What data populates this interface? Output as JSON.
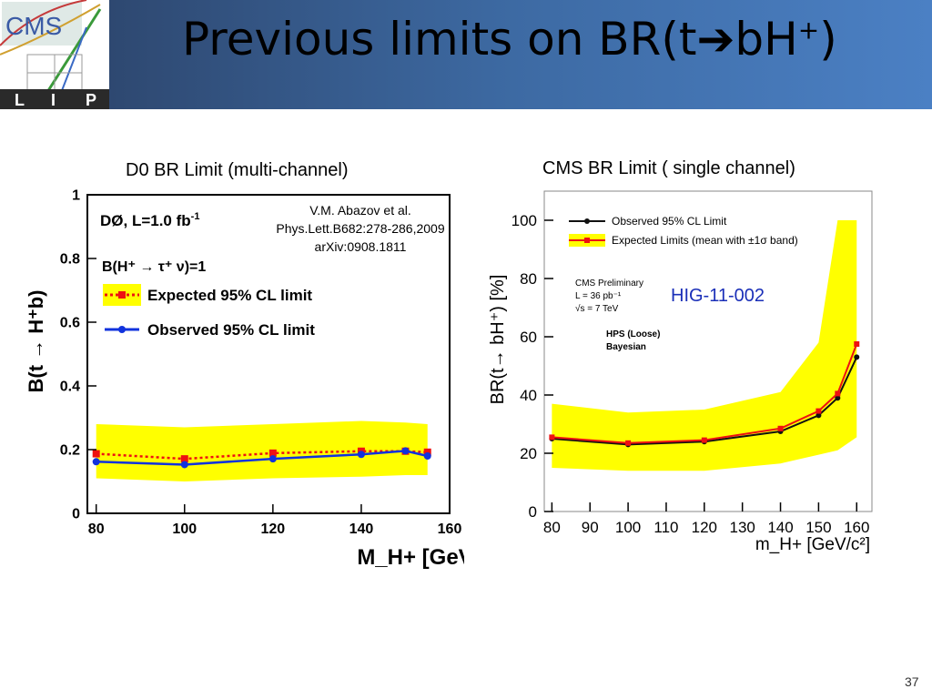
{
  "slide": {
    "title": "Previous limits on BR(t",
    "title_arrow": "➔",
    "title_tail": "bH",
    "title_sup": "+",
    "title_close": ")",
    "page_number": "37"
  },
  "logo": {
    "cms_text": "CMS",
    "lip_letters": [
      "L",
      "I",
      "P"
    ]
  },
  "left_panel": {
    "caption": "D0 BR Limit (multi-channel)",
    "experiment": "DØ, L=1.0 fb",
    "experiment_sup": "-1",
    "process": "B(H⁺ → τ⁺ ν)=1",
    "reference": [
      "V.M. Abazov et al.",
      "Phys.Lett.B682:278-286,2009",
      "arXiv:0908.1811"
    ]
  },
  "right_panel": {
    "caption": "CMS BR Limit ( single channel)",
    "note": "HIG-11-002",
    "info": [
      "CMS Preliminary",
      "L = 36 pb⁻¹",
      "√s = 7 TeV"
    ],
    "method": [
      "HPS (Loose)",
      "Bayesian"
    ]
  },
  "chart_data": [
    {
      "type": "line",
      "title": "D0 BR Limit (multi-channel)",
      "xlabel": "M_H+ [GeV]",
      "ylabel": "B(t → H⁺b)",
      "xlim": [
        78,
        160
      ],
      "ylim": [
        0,
        1
      ],
      "xticks": [
        80,
        100,
        120,
        140,
        160
      ],
      "yticks": [
        0,
        0.2,
        0.4,
        0.6,
        0.8,
        1
      ],
      "x": [
        80,
        100,
        120,
        140,
        150,
        155
      ],
      "series": [
        {
          "name": "Expected 95% CL limit",
          "values": [
            0.187,
            0.171,
            0.189,
            0.195,
            0.195,
            0.192
          ],
          "color": "#ee1111",
          "style": "dotted",
          "marker": "square"
        },
        {
          "name": "Observed 95% CL limit",
          "values": [
            0.162,
            0.153,
            0.171,
            0.185,
            0.196,
            0.18
          ],
          "color": "#1133dd",
          "style": "solid",
          "marker": "circle"
        }
      ],
      "band": {
        "upper": [
          0.28,
          0.27,
          0.28,
          0.29,
          0.285,
          0.28
        ],
        "lower": [
          0.11,
          0.1,
          0.11,
          0.115,
          0.12,
          0.12
        ],
        "color": "#ffff00"
      },
      "legend": "top-left"
    },
    {
      "type": "line",
      "title": "CMS BR Limit ( single channel)",
      "xlabel": "m_H+ [GeV/c²]",
      "ylabel": "BR(t→ bH⁺) [%]",
      "xlim": [
        78,
        164
      ],
      "ylim": [
        0,
        110
      ],
      "xticks": [
        80,
        90,
        100,
        110,
        120,
        130,
        140,
        150,
        160
      ],
      "yticks": [
        0,
        20,
        40,
        60,
        80,
        100
      ],
      "x": [
        80,
        100,
        120,
        140,
        150,
        155,
        160
      ],
      "series": [
        {
          "name": "Observed 95% CL Limit",
          "values": [
            25,
            23,
            24,
            27.5,
            33,
            39,
            53
          ],
          "color": "#111111",
          "style": "solid",
          "marker": "circle"
        },
        {
          "name": "Expected Limits (mean with ±1σ band)",
          "values": [
            25.5,
            23.5,
            24.5,
            28.5,
            34.5,
            40.5,
            57.5
          ],
          "color": "#ee1111",
          "style": "solid",
          "marker": "square"
        }
      ],
      "band": {
        "upper": [
          37,
          34,
          35,
          41,
          58,
          100,
          100
        ],
        "lower": [
          15,
          14,
          14,
          16.5,
          19.5,
          21,
          25.5
        ],
        "color": "#ffff00"
      },
      "legend": "top"
    }
  ]
}
